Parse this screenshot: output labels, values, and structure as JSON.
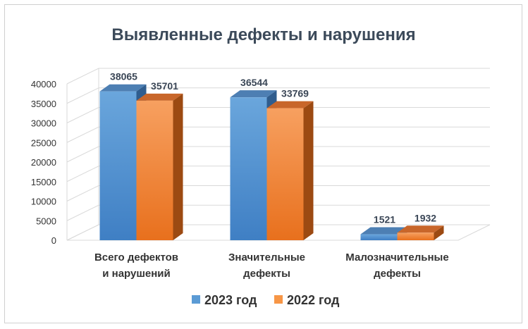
{
  "chart_data": {
    "type": "bar",
    "title": "Выявленные дефекты и нарушения",
    "categories": [
      [
        "Всего дефектов",
        "и нарушений"
      ],
      [
        "Значительные",
        "дефекты"
      ],
      [
        "Малозначительные",
        "дефекты"
      ]
    ],
    "series": [
      {
        "name": "2023 год",
        "values": [
          38065,
          36544,
          1521
        ]
      },
      {
        "name": "2022 год",
        "values": [
          35701,
          33769,
          1932
        ]
      }
    ],
    "ylim": [
      0,
      40000
    ],
    "yticks": [
      0,
      5000,
      10000,
      15000,
      20000,
      25000,
      30000,
      35000,
      40000
    ],
    "grid": true,
    "legend": "bottom",
    "colors": {
      "2023 год": {
        "front": "#5b9bd5",
        "front_dark": "#3f7fc4",
        "side": "#2f5d8e",
        "top": "#4d7fb3"
      },
      "2022 год": {
        "front": "#f79646",
        "front_dark": "#e8701d",
        "side": "#9c4a12",
        "top": "#c8662a"
      }
    }
  }
}
